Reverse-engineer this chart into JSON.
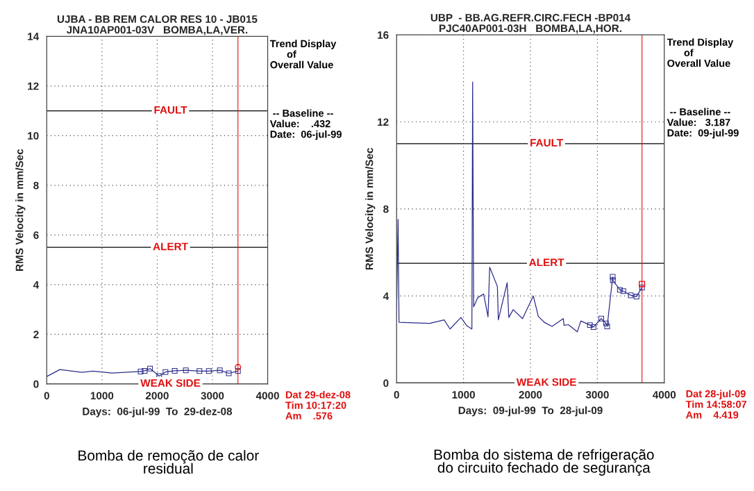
{
  "chart_data": [
    {
      "type": "line",
      "title": "UJBA - BB REM CALOR RES 10 - JB015",
      "subtitle": "JNA10AP001-03V   BOMBA,LA,VER.",
      "xlabel": "Days:  06-jul-99  To  29-dez-08",
      "ylabel": "RMS Velocity in mm/Sec",
      "xlim": [
        0,
        4000
      ],
      "xticks": [
        0,
        1000,
        2000,
        3000,
        4000
      ],
      "ylim": [
        0,
        14
      ],
      "yticks": [
        0,
        2,
        4,
        6,
        8,
        10,
        12,
        14
      ],
      "grid": true,
      "series": [
        {
          "color": "#2b2b8c",
          "x": [
            0,
            239,
            636,
            838,
            1182,
            1700
          ],
          "values": [
            0.3,
            0.58,
            0.47,
            0.52,
            0.44,
            0.5
          ]
        },
        {
          "color": "#2b2b8c",
          "marker": "square",
          "x": [
            1700,
            1773,
            1870,
            2036,
            2150,
            2316,
            2518,
            2765,
            2935,
            3134,
            3296,
            3462
          ],
          "values": [
            0.5,
            0.53,
            0.62,
            0.32,
            0.48,
            0.53,
            0.55,
            0.52,
            0.52,
            0.55,
            0.43,
            0.52
          ]
        },
        {
          "type": "scatter",
          "color": "#e01010",
          "marker": "circle",
          "x": [
            3462
          ],
          "values": [
            0.68
          ]
        }
      ],
      "ref_lines": [
        {
          "axis": "y",
          "value": 11,
          "label": "FAULT",
          "color": "#000000"
        },
        {
          "axis": "y",
          "value": 5.5,
          "label": "ALERT",
          "color": "#000000"
        },
        {
          "axis": "y",
          "value": 0,
          "label": "WEAK SIDE",
          "color": "#000000"
        },
        {
          "axis": "x",
          "value": 3462,
          "color": "#e01010"
        }
      ],
      "annotations": [
        "Trend Display\n      of\nOverall Value",
        " -- Baseline --\nValue:    .432\nDate:  06-jul-99",
        "Dat 29-dez-08\nTim 10:17:20\nAm    .576",
        "Bomba de remoção de calor\nresidual"
      ]
    },
    {
      "type": "line",
      "title": "UBP  - BB.AG.REFR.CIRC.FECH -BP014",
      "subtitle": "PJC40AP001-03H   BOMBA,LA,HOR.",
      "xlabel": "Days:  09-jul-99  To  28-jul-09",
      "ylabel": "RMS Velocity in mm/Sec",
      "xlim": [
        0,
        4000
      ],
      "xticks": [
        0,
        1000,
        2000,
        3000,
        4000
      ],
      "ylim": [
        0,
        16
      ],
      "yticks": [
        0,
        4,
        8,
        12,
        16
      ],
      "grid": true,
      "series": [
        {
          "color": "#2b2b8c",
          "x": [
            0,
            22,
            36,
            495,
            710,
            799,
            961,
            1050,
            1125,
            1136,
            1151,
            1212,
            1301,
            1366,
            1391,
            1506,
            1520,
            1652,
            1677,
            1742,
            1882,
            2043,
            2118,
            2215,
            2323,
            2491,
            2502,
            2567,
            2700,
            2753,
            2889
          ],
          "values": [
            3.4,
            7.52,
            2.79,
            2.74,
            2.9,
            2.48,
            3.01,
            2.63,
            2.48,
            13.83,
            3.5,
            3.92,
            4.09,
            3.04,
            5.32,
            4.44,
            2.9,
            4.61,
            3.01,
            3.37,
            2.96,
            4.0,
            3.06,
            2.77,
            2.6,
            2.96,
            2.65,
            2.68,
            2.35,
            2.85,
            2.66
          ]
        },
        {
          "color": "#2b2b8c",
          "marker": "square",
          "x": [
            2889,
            2943,
            3058,
            3129,
            3147,
            3229,
            3232,
            3337,
            3388,
            3499,
            3585,
            3667
          ],
          "values": [
            2.66,
            2.57,
            2.96,
            2.74,
            2.6,
            4.88,
            4.72,
            4.28,
            4.22,
            4.03,
            3.97,
            4.39
          ]
        },
        {
          "type": "scatter",
          "color": "#e01010",
          "marker": "square",
          "x": [
            3667
          ],
          "values": [
            4.55
          ]
        }
      ],
      "ref_lines": [
        {
          "axis": "y",
          "value": 11,
          "label": "FAULT",
          "color": "#000000"
        },
        {
          "axis": "y",
          "value": 5.5,
          "label": "ALERT",
          "color": "#000000"
        },
        {
          "axis": "y",
          "value": 0,
          "label": "WEAK SIDE",
          "color": "#000000"
        },
        {
          "axis": "x",
          "value": 3667,
          "color": "#e01010"
        }
      ],
      "annotations": [
        "Trend Display\n      of\nOverall Value",
        " -- Baseline --\nValue:   3.187\nDate:  09-jul-99",
        "Dat 28-jul-09\nTim 14:58:07\nAm    4.419",
        "Bomba do sistema de refrigeração\ndo circuito fechado de segurança"
      ]
    }
  ]
}
